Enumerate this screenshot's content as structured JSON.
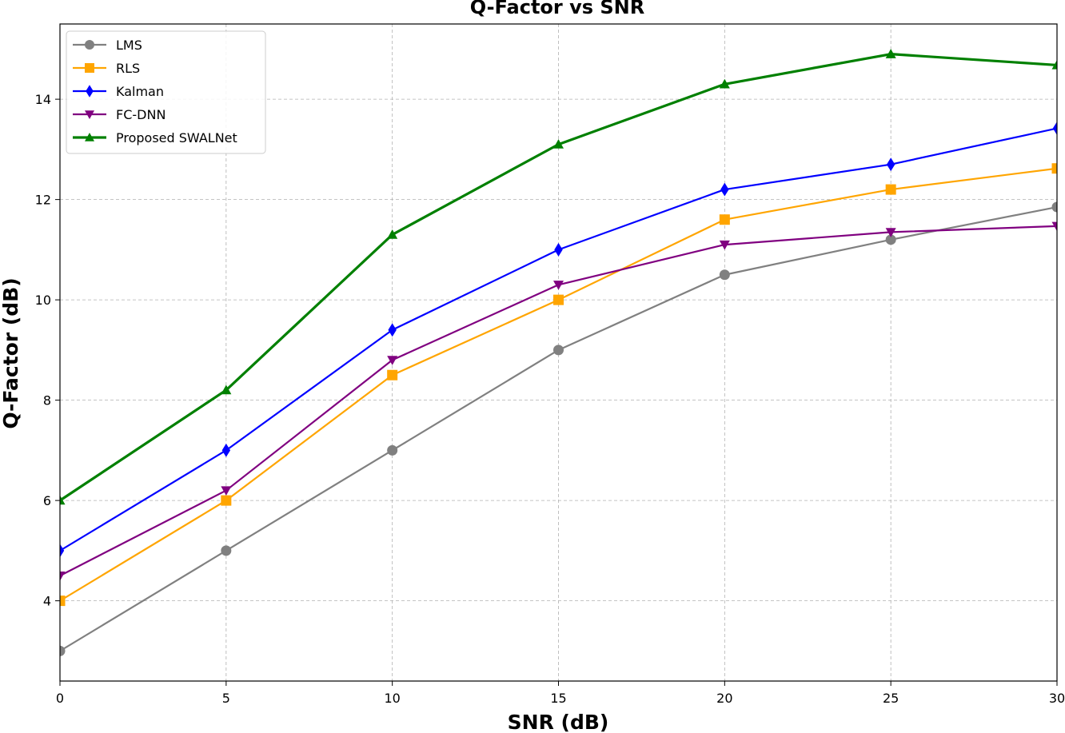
{
  "chart_data": {
    "type": "line",
    "title": "Q-Factor vs SNR",
    "xlabel": "SNR (dB)",
    "ylabel": "Q-Factor (dB)",
    "x": [
      0,
      5,
      10,
      15,
      20,
      25,
      30
    ],
    "xlim": [
      0,
      30
    ],
    "ylim": [
      2.4,
      15.5
    ],
    "xticks": [
      0,
      5,
      10,
      15,
      20,
      25,
      30
    ],
    "yticks": [
      4,
      6,
      8,
      10,
      12,
      14
    ],
    "grid": true,
    "legend_position": "top-left",
    "series": [
      {
        "name": "LMS",
        "color": "#808080",
        "marker": "circle",
        "values": [
          3.0,
          5.0,
          7.0,
          9.0,
          10.5,
          11.2,
          11.85
        ]
      },
      {
        "name": "RLS",
        "color": "#ffa500",
        "marker": "square",
        "values": [
          4.0,
          6.0,
          8.5,
          10.0,
          11.6,
          12.2,
          12.62
        ]
      },
      {
        "name": "Kalman",
        "color": "#0000ff",
        "marker": "diamond",
        "values": [
          5.0,
          7.0,
          9.4,
          11.0,
          12.2,
          12.7,
          13.42
        ]
      },
      {
        "name": "FC-DNN",
        "color": "#800080",
        "marker": "triangle-down",
        "values": [
          4.5,
          6.2,
          8.8,
          10.3,
          11.1,
          11.35,
          11.47
        ]
      },
      {
        "name": "Proposed SWALNet",
        "color": "#008000",
        "marker": "triangle-up",
        "values": [
          6.0,
          8.2,
          11.3,
          13.1,
          14.3,
          14.9,
          14.68
        ]
      }
    ]
  }
}
